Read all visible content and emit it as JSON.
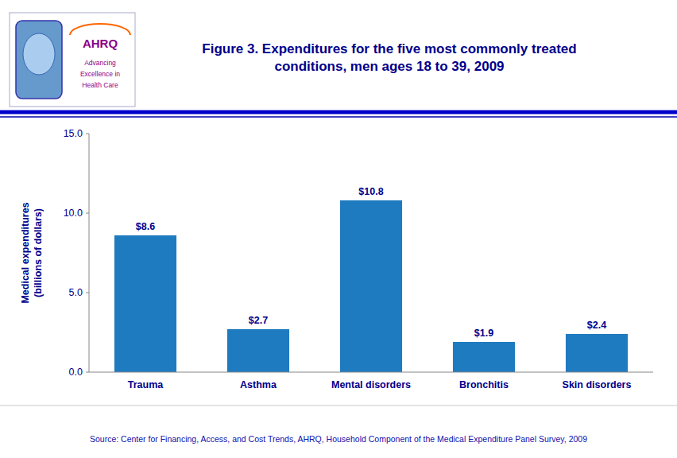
{
  "chart_data": {
    "type": "bar",
    "title": "Figure 3. Expenditures for the five most commonly treated\nconditions, men ages 18 to 39, 2009",
    "categories": [
      "Trauma",
      "Asthma",
      "Mental disorders",
      "Bronchitis",
      "Skin disorders"
    ],
    "values": [
      8.6,
      2.7,
      10.8,
      1.9,
      2.4
    ],
    "value_labels": [
      "$8.6",
      "$2.7",
      "$10.8",
      "$1.9",
      "$2.4"
    ],
    "data_labels": true,
    "color": "#1F7BC0",
    "ylabel": "Medical expenditures\n(billions of dollars)",
    "ylim": [
      0,
      15.0
    ],
    "yticks": [
      {
        "value": 0.0,
        "label": "0.0"
      },
      {
        "value": 5.0,
        "label": "5.0"
      },
      {
        "value": 10.0,
        "label": "10.0"
      },
      {
        "value": 15.0,
        "label": "15.0"
      }
    ],
    "grid": false,
    "annotations": [
      "Source: Center for Financing, Access, and Cost Trends, AHRQ, Household Component of the Medical Expenditure Panel Survey,  2009",
      "AHRQ",
      "Advancing",
      "Excellence in",
      "Health Care"
    ]
  }
}
